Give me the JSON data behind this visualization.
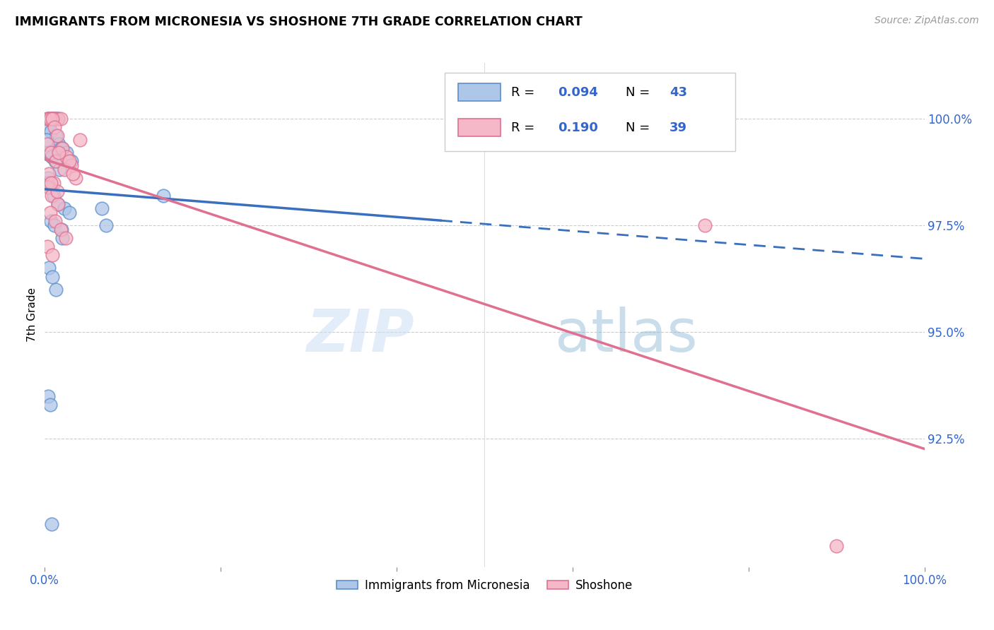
{
  "title": "IMMIGRANTS FROM MICRONESIA VS SHOSHONE 7TH GRADE CORRELATION CHART",
  "source": "Source: ZipAtlas.com",
  "ylabel": "7th Grade",
  "y_tick_labels": [
    "92.5%",
    "95.0%",
    "97.5%",
    "100.0%"
  ],
  "y_tick_values": [
    92.5,
    95.0,
    97.5,
    100.0
  ],
  "legend_blue_r": "0.094",
  "legend_blue_n": "43",
  "legend_pink_r": "0.190",
  "legend_pink_n": "39",
  "blue_color": "#aec6e8",
  "blue_edge_color": "#5b8fcc",
  "blue_line_color": "#3a6fbd",
  "pink_color": "#f5b8c8",
  "pink_edge_color": "#e07090",
  "pink_line_color": "#e07090",
  "blue_scatter_x": [
    0.5,
    0.8,
    1.0,
    1.2,
    1.5,
    0.3,
    0.6,
    0.9,
    1.1,
    1.4,
    0.4,
    0.7,
    1.3,
    0.2,
    1.6,
    1.8,
    0.5,
    0.8,
    1.2,
    1.7,
    2.0,
    2.5,
    3.0,
    0.4,
    0.6,
    1.0,
    1.5,
    2.2,
    2.8,
    0.3,
    0.7,
    1.1,
    1.9,
    6.5,
    7.0,
    0.5,
    0.9,
    1.3,
    13.5,
    2.0,
    0.4,
    0.6,
    0.8
  ],
  "blue_scatter_y": [
    100.0,
    100.0,
    100.0,
    100.0,
    100.0,
    100.0,
    100.0,
    100.0,
    100.0,
    100.0,
    99.8,
    99.7,
    99.6,
    99.5,
    99.4,
    99.3,
    99.2,
    99.1,
    99.0,
    98.8,
    99.3,
    99.2,
    99.0,
    98.6,
    98.4,
    98.2,
    98.0,
    97.9,
    97.8,
    98.5,
    97.6,
    97.5,
    97.4,
    97.9,
    97.5,
    96.5,
    96.3,
    96.0,
    98.2,
    97.2,
    93.5,
    93.3,
    90.5
  ],
  "pink_scatter_x": [
    0.3,
    0.5,
    0.8,
    1.0,
    1.2,
    1.5,
    1.8,
    0.4,
    0.6,
    0.9,
    1.1,
    1.4,
    0.3,
    0.7,
    1.3,
    2.0,
    2.5,
    3.0,
    0.5,
    1.0,
    1.6,
    2.2,
    3.5,
    0.4,
    0.8,
    1.5,
    2.8,
    3.2,
    4.0,
    0.6,
    1.2,
    1.8,
    2.4,
    0.3,
    0.9,
    1.4,
    75.0,
    0.7,
    90.0
  ],
  "pink_scatter_y": [
    100.0,
    100.0,
    100.0,
    100.0,
    100.0,
    100.0,
    100.0,
    100.0,
    100.0,
    100.0,
    99.8,
    99.6,
    99.4,
    99.2,
    99.0,
    99.3,
    99.1,
    98.9,
    98.7,
    98.5,
    99.2,
    98.8,
    98.6,
    98.4,
    98.2,
    98.0,
    99.0,
    98.7,
    99.5,
    97.8,
    97.6,
    97.4,
    97.2,
    97.0,
    96.8,
    98.3,
    97.5,
    98.5,
    90.0
  ],
  "xlim": [
    0,
    100
  ],
  "ylim": [
    89.5,
    101.3
  ],
  "watermark_zip": "ZIP",
  "watermark_atlas": "atlas",
  "figsize": [
    14.06,
    8.92
  ],
  "dpi": 100
}
